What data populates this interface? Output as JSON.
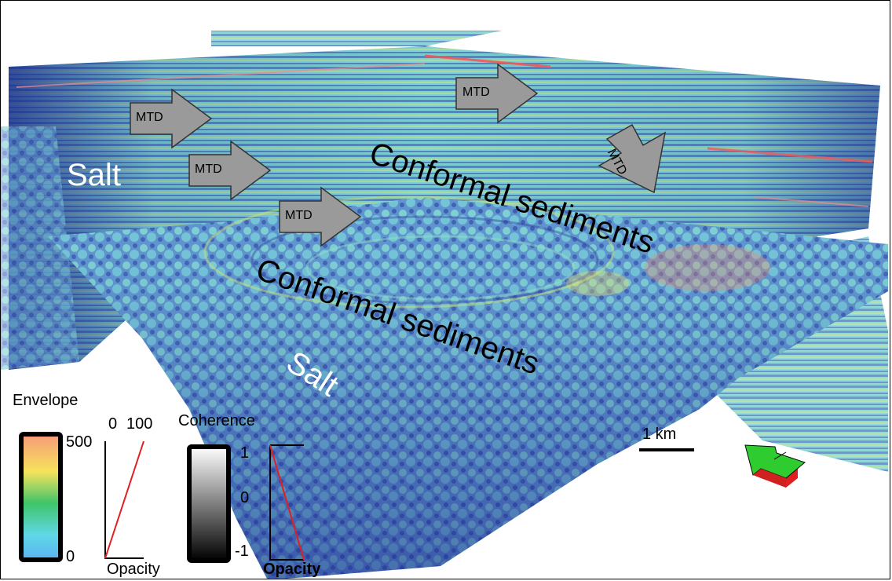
{
  "annotations": {
    "mtd_1": "MTD",
    "mtd_2": "MTD",
    "mtd_3": "MTD",
    "mtd_4": "MTD",
    "mtd_5": "MTD",
    "salt_upper": "Salt",
    "salt_lower": "Salt",
    "conformal_upper": "Conformal sediments",
    "conformal_lower": "Conformal sediments"
  },
  "envelope_legend": {
    "title": "Envelope",
    "max_label": "500",
    "min_label": "0",
    "opacity_top_left": "0",
    "opacity_top_right": "100",
    "opacity_label": "Opacity",
    "colors": [
      "#f79a7a",
      "#f5e35b",
      "#3fc46a",
      "#60d8e6",
      "#5ab2f2"
    ]
  },
  "coherence_legend": {
    "title": "Coherence",
    "max_label": "1",
    "mid_label": "0",
    "min_label": "-1",
    "opacity_label": "Opacity",
    "colors": [
      "#ffffff",
      "#000000"
    ]
  },
  "scale_bar": {
    "label": "1 km"
  },
  "north_arrow": {
    "top_color": "#2ecc2e",
    "side_color": "#e02020"
  }
}
